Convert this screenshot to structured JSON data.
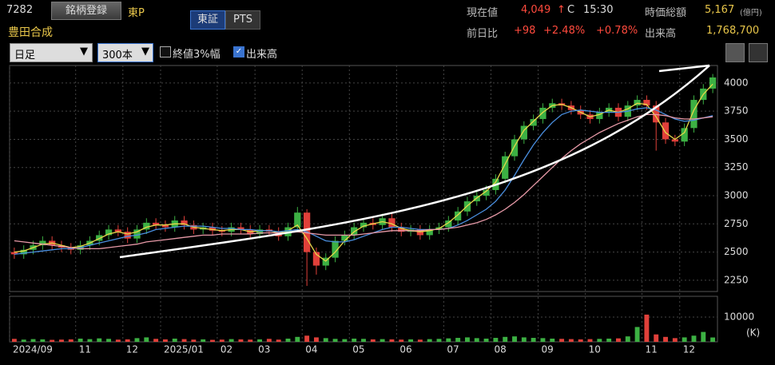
{
  "header": {
    "code": "7282",
    "register_button": "銘柄登録",
    "market": "東P",
    "tabs": [
      "東証",
      "PTS"
    ],
    "name": "豊田合成",
    "quote": {
      "price_label": "現在値",
      "price": "4,049",
      "arrow": "↑",
      "flag": "C",
      "time": "15:30",
      "mcap_label": "時価総額",
      "mcap": "5,167",
      "mcap_unit": "(億円)",
      "change_label": "前日比",
      "change": "+98",
      "change_pct": "+2.48%",
      "change_pct2": "+0.78%",
      "volume_label": "出来高",
      "volume": "1,768,700"
    }
  },
  "toolbar": {
    "period": "日足",
    "count": "300本",
    "checkbox_3pct": "終値3%幅",
    "checkbox_volume": "出来高",
    "volume_checked": true
  },
  "chart_data": {
    "type": "candlestick",
    "open": [
      2500,
      2480,
      2520,
      2560,
      2600,
      2560,
      2540,
      2520,
      2560,
      2600,
      2650,
      2700,
      2680,
      2620,
      2700,
      2760,
      2740,
      2720,
      2780,
      2740,
      2700,
      2720,
      2690,
      2680,
      2720,
      2700,
      2660,
      2700,
      2680,
      2640,
      2720,
      2850,
      2500,
      2380,
      2450,
      2600,
      2650,
      2720,
      2760,
      2740,
      2800,
      2720,
      2680,
      2700,
      2650,
      2700,
      2720,
      2780,
      2860,
      2950,
      3000,
      3050,
      3150,
      3350,
      3500,
      3620,
      3680,
      3780,
      3820,
      3800,
      3760,
      3720,
      3680,
      3740,
      3780,
      3700,
      3800,
      3850,
      3800,
      3650,
      3500,
      3480,
      3600,
      3850,
      3950
    ],
    "high": [
      2540,
      2560,
      2600,
      2640,
      2640,
      2600,
      2580,
      2600,
      2640,
      2690,
      2740,
      2740,
      2720,
      2740,
      2800,
      2800,
      2780,
      2820,
      2820,
      2780,
      2760,
      2760,
      2730,
      2760,
      2760,
      2740,
      2740,
      2740,
      2720,
      2760,
      2900,
      2880,
      2540,
      2490,
      2640,
      2690,
      2760,
      2800,
      2800,
      2840,
      2840,
      2760,
      2740,
      2740,
      2740,
      2760,
      2820,
      2900,
      2990,
      3040,
      3090,
      3190,
      3390,
      3540,
      3660,
      3720,
      3820,
      3860,
      3860,
      3840,
      3800,
      3760,
      3780,
      3820,
      3820,
      3840,
      3890,
      3890,
      3840,
      3690,
      3540,
      3640,
      3890,
      3990,
      4080
    ],
    "low": [
      2440,
      2440,
      2480,
      2520,
      2520,
      2500,
      2480,
      2480,
      2520,
      2560,
      2610,
      2640,
      2580,
      2580,
      2660,
      2700,
      2680,
      2680,
      2700,
      2660,
      2660,
      2650,
      2640,
      2640,
      2660,
      2620,
      2620,
      2640,
      2600,
      2600,
      2680,
      2200,
      2300,
      2340,
      2410,
      2560,
      2610,
      2680,
      2700,
      2700,
      2680,
      2640,
      2640,
      2610,
      2610,
      2660,
      2680,
      2740,
      2820,
      2910,
      2960,
      3010,
      3110,
      3310,
      3460,
      3580,
      3640,
      3740,
      3760,
      3720,
      3680,
      3640,
      3640,
      3700,
      3660,
      3660,
      3760,
      3760,
      3400,
      3460,
      3440,
      3440,
      3560,
      3810,
      3910
    ],
    "close": [
      2480,
      2520,
      2560,
      2600,
      2560,
      2540,
      2520,
      2560,
      2600,
      2650,
      2700,
      2680,
      2620,
      2700,
      2760,
      2740,
      2720,
      2780,
      2740,
      2700,
      2720,
      2690,
      2680,
      2720,
      2700,
      2660,
      2700,
      2680,
      2640,
      2720,
      2850,
      2500,
      2380,
      2450,
      2600,
      2650,
      2720,
      2760,
      2740,
      2800,
      2720,
      2680,
      2700,
      2650,
      2700,
      2720,
      2780,
      2860,
      2950,
      3000,
      3050,
      3150,
      3350,
      3500,
      3620,
      3680,
      3780,
      3820,
      3800,
      3760,
      3720,
      3680,
      3740,
      3780,
      3700,
      3800,
      3850,
      3800,
      3650,
      3500,
      3480,
      3600,
      3850,
      3950,
      4049
    ],
    "up_color": "#3cb043",
    "down_color": "#e0403a",
    "series": [
      {
        "color": "#e8d84a",
        "values": [
          2500,
          2510,
          2540,
          2570,
          2580,
          2560,
          2540,
          2550,
          2580,
          2620,
          2660,
          2680,
          2660,
          2680,
          2720,
          2740,
          2740,
          2750,
          2750,
          2720,
          2710,
          2700,
          2690,
          2700,
          2700,
          2680,
          2690,
          2690,
          2670,
          2690,
          2740,
          2620,
          2480,
          2420,
          2500,
          2600,
          2680,
          2730,
          2750,
          2770,
          2750,
          2710,
          2690,
          2680,
          2690,
          2710,
          2760,
          2830,
          2910,
          2980,
          3040,
          3120,
          3280,
          3440,
          3580,
          3660,
          3740,
          3800,
          3810,
          3780,
          3740,
          3700,
          3720,
          3760,
          3740,
          3770,
          3820,
          3810,
          3700,
          3560,
          3500,
          3560,
          3760,
          3900,
          3990
        ]
      },
      {
        "color": "#4a8fe0",
        "values": [
          2480,
          2490,
          2500,
          2510,
          2520,
          2530,
          2530,
          2540,
          2560,
          2580,
          2600,
          2620,
          2640,
          2650,
          2670,
          2700,
          2710,
          2720,
          2730,
          2730,
          2730,
          2720,
          2710,
          2710,
          2700,
          2700,
          2690,
          2690,
          2680,
          2690,
          2700,
          2680,
          2640,
          2600,
          2590,
          2590,
          2610,
          2640,
          2670,
          2700,
          2720,
          2720,
          2710,
          2700,
          2700,
          2700,
          2710,
          2740,
          2780,
          2830,
          2880,
          2950,
          3050,
          3180,
          3320,
          3450,
          3560,
          3650,
          3720,
          3750,
          3760,
          3750,
          3740,
          3740,
          3740,
          3750,
          3770,
          3780,
          3760,
          3720,
          3680,
          3660,
          3670,
          3690,
          3710
        ]
      },
      {
        "color": "#e89aa8",
        "values": [
          2600,
          2590,
          2580,
          2570,
          2560,
          2550,
          2540,
          2530,
          2530,
          2530,
          2540,
          2550,
          2560,
          2570,
          2590,
          2600,
          2610,
          2620,
          2630,
          2640,
          2650,
          2650,
          2660,
          2660,
          2660,
          2660,
          2670,
          2670,
          2670,
          2670,
          2680,
          2670,
          2660,
          2650,
          2650,
          2650,
          2650,
          2660,
          2670,
          2680,
          2690,
          2690,
          2690,
          2690,
          2700,
          2700,
          2710,
          2720,
          2740,
          2760,
          2790,
          2830,
          2880,
          2940,
          3010,
          3090,
          3170,
          3250,
          3330,
          3400,
          3460,
          3510,
          3560,
          3600,
          3640,
          3670,
          3700,
          3720,
          3720,
          3710,
          3690,
          3680,
          3680,
          3690,
          3700
        ]
      }
    ],
    "ylim": [
      2150,
      4155
    ],
    "yticks": [
      2250,
      2500,
      2750,
      3000,
      3250,
      3500,
      3750,
      4000
    ],
    "grid": true,
    "xticks": [
      {
        "value": 0,
        "label": "2024/09"
      },
      {
        "value": 7,
        "label": "11"
      },
      {
        "value": 12,
        "label": "12"
      },
      {
        "value": 16,
        "label": "2025/01"
      },
      {
        "value": 22,
        "label": "02"
      },
      {
        "value": 26,
        "label": "03"
      },
      {
        "value": 31,
        "label": "04"
      },
      {
        "value": 36,
        "label": "05"
      },
      {
        "value": 41,
        "label": "06"
      },
      {
        "value": 46,
        "label": "07"
      },
      {
        "value": 51,
        "label": "08"
      },
      {
        "value": 56,
        "label": "09"
      },
      {
        "value": 61,
        "label": "10"
      },
      {
        "value": 67,
        "label": "11"
      },
      {
        "value": 71,
        "label": "12"
      }
    ],
    "volume": {
      "values": [
        1200,
        900,
        1100,
        1000,
        800,
        900,
        1000,
        1300,
        1100,
        1400,
        1200,
        900,
        1000,
        1500,
        1800,
        1200,
        1000,
        1300,
        1100,
        900,
        1000,
        800,
        900,
        1100,
        1000,
        900,
        1000,
        1200,
        900,
        1300,
        2000,
        2500,
        1800,
        1500,
        1200,
        1100,
        1300,
        1200,
        1000,
        1100,
        1000,
        900,
        1000,
        900,
        1100,
        1200,
        1400,
        1600,
        1800,
        1500,
        1300,
        1600,
        2000,
        2200,
        1800,
        1600,
        1500,
        1300,
        1200,
        1100,
        1000,
        1100,
        1200,
        1300,
        1400,
        2200,
        6000,
        11000,
        3000,
        2000,
        1500,
        1800,
        2500,
        4000,
        1769
      ],
      "ylim": [
        0,
        18400
      ],
      "yticks": [
        10000
      ],
      "unit": "(K)"
    }
  }
}
